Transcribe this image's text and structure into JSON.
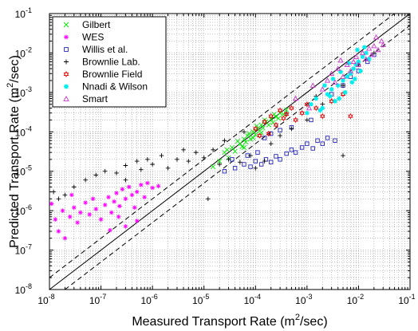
{
  "chart_data": {
    "type": "scatter",
    "xscale": "log",
    "yscale": "log",
    "xlim": [
      1e-08,
      0.1
    ],
    "ylim": [
      1e-08,
      0.1
    ],
    "grid": true,
    "legend_position": "top-left",
    "xlabel": {
      "pre": "Measured Transport Rate (m",
      "sup": "2",
      "post": "/sec)"
    },
    "ylabel": {
      "pre": "Predicted Transport Rate (m",
      "sup": "2",
      "post": "/sec)"
    },
    "x_tick_labels": [
      {
        "v": 1e-08,
        "base": "10",
        "exp": "-8"
      },
      {
        "v": 1e-07,
        "base": "10",
        "exp": "-7"
      },
      {
        "v": 1e-06,
        "base": "10",
        "exp": "-6"
      },
      {
        "v": 1e-05,
        "base": "10",
        "exp": "-5"
      },
      {
        "v": 0.0001,
        "base": "10",
        "exp": "-4"
      },
      {
        "v": 0.001,
        "base": "10",
        "exp": "-3"
      },
      {
        "v": 0.01,
        "base": "10",
        "exp": "-2"
      },
      {
        "v": 0.1,
        "base": "10",
        "exp": "-1"
      }
    ],
    "y_tick_labels": [
      {
        "v": 1e-08,
        "base": "10",
        "exp": "-8"
      },
      {
        "v": 1e-07,
        "base": "10",
        "exp": "-7"
      },
      {
        "v": 1e-06,
        "base": "10",
        "exp": "-6"
      },
      {
        "v": 1e-05,
        "base": "10",
        "exp": "-5"
      },
      {
        "v": 0.0001,
        "base": "10",
        "exp": "-4"
      },
      {
        "v": 0.001,
        "base": "10",
        "exp": "-3"
      },
      {
        "v": 0.01,
        "base": "10",
        "exp": "-2"
      },
      {
        "v": 0.1,
        "base": "10",
        "exp": "-1"
      }
    ],
    "reference_lines": [
      {
        "kind": "equality",
        "factor": 1,
        "style": "solid",
        "color": "#000000"
      },
      {
        "kind": "factor",
        "factor": 2,
        "style": "dashed",
        "color": "#000000"
      },
      {
        "kind": "factor",
        "factor": 0.5,
        "style": "dashed",
        "color": "#000000"
      }
    ],
    "series": [
      {
        "name": "Gilbert",
        "marker": "x",
        "color": "#00ee00",
        "points": [
          [
            2e-05,
            1.8e-05
          ],
          [
            2.5e-05,
            3e-05
          ],
          [
            3e-05,
            2.2e-05
          ],
          [
            3.5e-05,
            4e-05
          ],
          [
            4e-05,
            3.2e-05
          ],
          [
            5e-05,
            5e-05
          ],
          [
            5.5e-05,
            4.2e-05
          ],
          [
            6e-05,
            6.5e-05
          ],
          [
            6.5e-05,
            5.5e-05
          ],
          [
            7e-05,
            8e-05
          ],
          [
            8e-05,
            6.5e-05
          ],
          [
            9e-05,
            0.0001
          ],
          [
            0.0001,
            8.5e-05
          ],
          [
            0.00011,
            0.00012
          ],
          [
            0.00012,
            0.000105
          ],
          [
            0.00013,
            0.00015
          ],
          [
            0.00014,
            0.000125
          ],
          [
            0.00016,
            0.00018
          ],
          [
            0.00018,
            0.00015
          ],
          [
            0.0002,
            0.00021
          ],
          [
            0.00022,
            0.00017
          ],
          [
            0.00025,
            0.00024
          ],
          [
            0.00028,
            0.00022
          ],
          [
            0.0003,
            0.0003
          ],
          [
            0.00035,
            0.00028
          ],
          [
            0.0004,
            0.00036
          ],
          [
            1.5e-05,
            1.3e-05
          ],
          [
            2.8e-05,
            3.5e-05
          ],
          [
            4.5e-05,
            5.8e-05
          ],
          [
            7.5e-05,
            9e-05
          ],
          [
            0.000105,
            0.00014
          ],
          [
            0.00015,
            0.0002
          ],
          [
            0.00023,
            0.00028
          ],
          [
            6e-05,
            4e-05
          ],
          [
            9e-05,
            7e-05
          ],
          [
            0.00013,
            9.5e-05
          ]
        ]
      },
      {
        "name": "WES",
        "marker": "star",
        "color": "#ff00ff",
        "points": [
          [
            1.1e-08,
            1.5e-06
          ],
          [
            1.3e-08,
            6e-07
          ],
          [
            1.5e-08,
            3e-07
          ],
          [
            1.8e-08,
            1e-06
          ],
          [
            2e-08,
            2e-07
          ],
          [
            2.5e-08,
            7e-07
          ],
          [
            3e-08,
            1.2e-06
          ],
          [
            3.5e-08,
            5e-07
          ],
          [
            4e-08,
            9e-07
          ],
          [
            5e-08,
            1.6e-06
          ],
          [
            6e-08,
            8e-07
          ],
          [
            7e-08,
            2e-06
          ],
          [
            8e-08,
            1.1e-06
          ],
          [
            1e-07,
            6e-07
          ],
          [
            1.2e-07,
            1.4e-06
          ],
          [
            1.4e-07,
            2.2e-06
          ],
          [
            1.6e-07,
            9e-07
          ],
          [
            1.8e-07,
            1.7e-06
          ],
          [
            2e-07,
            2.8e-06
          ],
          [
            2.3e-07,
            1.3e-06
          ],
          [
            2.6e-07,
            3.5e-06
          ],
          [
            3e-07,
            2e-06
          ],
          [
            3.5e-07,
            4e-06
          ],
          [
            4e-07,
            2.5e-06
          ],
          [
            4.5e-07,
            1.2e-06
          ],
          [
            5e-07,
            3e-06
          ],
          [
            6e-07,
            4.5e-06
          ],
          [
            7e-07,
            2.2e-06
          ],
          [
            8e-07,
            5e-06
          ],
          [
            5e-07,
            5.5e-07
          ],
          [
            3e-07,
            4e-07
          ],
          [
            1e-06,
            3.8e-06
          ],
          [
            1.3e-06,
            4.2e-06
          ],
          [
            1.5e-07,
            3.2e-07
          ],
          [
            2.2e-07,
            7e-07
          ],
          [
            2.7e-08,
            2.5e-06
          ]
        ]
      },
      {
        "name": "Willis et al.",
        "marker": "square",
        "color": "#2222bb",
        "points": [
          [
            2.5e-05,
            1e-05
          ],
          [
            4e-05,
            1.2e-05
          ],
          [
            6e-05,
            1.5e-05
          ],
          [
            8e-05,
            1.3e-05
          ],
          [
            0.0001,
            1.8e-05
          ],
          [
            0.00013,
            1.5e-05
          ],
          [
            0.00016,
            2e-05
          ],
          [
            0.0002,
            1.7e-05
          ],
          [
            0.00025,
            2.4e-05
          ],
          [
            0.0003,
            2e-05
          ],
          [
            0.0004,
            2.8e-05
          ],
          [
            0.0005,
            3.5e-05
          ],
          [
            0.0006,
            3e-05
          ],
          [
            0.0008,
            4e-05
          ],
          [
            0.001,
            5e-05
          ],
          [
            0.0013,
            3.8e-05
          ],
          [
            0.0016,
            6e-05
          ],
          [
            0.002,
            5e-05
          ],
          [
            0.0025,
            7e-05
          ],
          [
            0.0035,
            6e-05
          ],
          [
            0.00015,
            7e-05
          ],
          [
            0.0002,
            9e-05
          ],
          [
            0.0003,
            0.00011
          ],
          [
            0.0005,
            0.00013
          ],
          [
            0.0012,
            0.0002
          ],
          [
            0.003,
            0.0009
          ],
          [
            0.005,
            0.0015
          ],
          [
            0.007,
            0.0025
          ],
          [
            0.01,
            0.0035
          ],
          [
            0.015,
            0.006
          ],
          [
            0.02,
            0.009
          ],
          [
            3.5e-05,
            2e-05
          ],
          [
            7e-05,
            2.5e-05
          ],
          [
            0.00011,
            3e-05
          ]
        ]
      },
      {
        "name": "Brownlie Lab.",
        "marker": "plus",
        "color": "#000000",
        "points": [
          [
            1.2e-08,
            3e-06
          ],
          [
            1.5e-08,
            2e-06
          ],
          [
            2e-08,
            2.5e-06
          ],
          [
            3e-08,
            4e-06
          ],
          [
            5e-08,
            6e-06
          ],
          [
            8e-08,
            8e-06
          ],
          [
            1.2e-07,
            1e-05
          ],
          [
            2e-07,
            9e-06
          ],
          [
            3e-07,
            1.4e-05
          ],
          [
            5e-07,
            1.8e-05
          ],
          [
            8e-07,
            2e-05
          ],
          [
            1e-06,
            1.5e-05
          ],
          [
            1.5e-06,
            2.5e-05
          ],
          [
            2e-06,
            1.2e-05
          ],
          [
            3e-06,
            2e-05
          ],
          [
            5e-06,
            1.8e-05
          ],
          [
            7e-06,
            3e-05
          ],
          [
            1e-05,
            2.2e-05
          ],
          [
            1.5e-05,
            3.5e-05
          ],
          [
            2e-05,
            1.5e-05
          ],
          [
            3e-05,
            2e-05
          ],
          [
            5e-05,
            1.7e-05
          ],
          [
            8e-05,
            2.5e-05
          ],
          [
            0.0001,
            1.2e-05
          ],
          [
            0.00015,
            1.8e-05
          ],
          [
            0.0002,
            5e-05
          ],
          [
            0.0003,
            8e-05
          ],
          [
            0.0005,
            0.00012
          ],
          [
            0.001,
            0.0002
          ],
          [
            0.002,
            0.0005
          ],
          [
            0.005,
            0.0015
          ],
          [
            0.01,
            0.005
          ],
          [
            0.02,
            0.01
          ],
          [
            0.005,
            2.5e-05
          ],
          [
            3e-07,
            6e-06
          ],
          [
            6e-07,
            1.1e-05
          ],
          [
            4e-06,
            3.5e-05
          ],
          [
            2.5e-05,
            6e-05
          ],
          [
            6e-05,
            0.0001
          ],
          [
            0.0004,
            0.0003
          ],
          [
            0.0015,
            0.0008
          ],
          [
            1.2e-05,
            2e-06
          ]
        ]
      },
      {
        "name": "Brownlie Field",
        "marker": "hexagram",
        "color": "#dd0000",
        "points": [
          [
            0.0001,
            0.00012
          ],
          [
            0.00015,
            0.00018
          ],
          [
            0.0002,
            0.00025
          ],
          [
            0.00025,
            0.00015
          ],
          [
            0.0003,
            0.00035
          ],
          [
            0.0004,
            0.00028
          ],
          [
            0.0005,
            0.0004
          ],
          [
            0.0006,
            0.0002
          ],
          [
            0.0008,
            0.0003
          ],
          [
            0.001,
            0.0005
          ],
          [
            0.0015,
            0.0004
          ],
          [
            0.002,
            0.00025
          ],
          [
            0.003,
            0.0006
          ],
          [
            0.005,
            0.0009
          ],
          [
            0.007,
            0.00025
          ],
          [
            0.00012,
            8e-05
          ],
          [
            0.00018,
            9e-05
          ],
          [
            0.00035,
            0.00022
          ]
        ]
      },
      {
        "name": "Nnadi & Wilson",
        "marker": "asterisk",
        "color": "#00eeee",
        "points": [
          [
            0.001,
            0.0003
          ],
          [
            0.0012,
            0.0005
          ],
          [
            0.0015,
            0.0007
          ],
          [
            0.002,
            0.0004
          ],
          [
            0.0025,
            0.0009
          ],
          [
            0.003,
            0.0012
          ],
          [
            0.0035,
            0.0006
          ],
          [
            0.004,
            0.0015
          ],
          [
            0.005,
            0.002
          ],
          [
            0.0055,
            0.001
          ],
          [
            0.006,
            0.0025
          ],
          [
            0.007,
            0.003
          ],
          [
            0.0075,
            0.0018
          ],
          [
            0.008,
            0.004
          ],
          [
            0.009,
            0.005
          ],
          [
            0.01,
            0.006
          ],
          [
            0.011,
            0.0035
          ],
          [
            0.012,
            0.008
          ],
          [
            0.014,
            0.01
          ],
          [
            0.016,
            0.007
          ],
          [
            0.0018,
            0.00035
          ],
          [
            0.0022,
            0.0015
          ],
          [
            0.0032,
            0.0022
          ],
          [
            0.0045,
            0.0033
          ],
          [
            0.0065,
            0.0055
          ],
          [
            0.0085,
            0.0022
          ],
          [
            0.013,
            0.014
          ],
          [
            0.0095,
            0.012
          ],
          [
            0.0028,
            0.0008
          ],
          [
            0.0042,
            0.0007
          ]
        ]
      },
      {
        "name": "Smart",
        "marker": "triangle",
        "color": "#cc33cc",
        "points": [
          [
            0.002,
            0.0012
          ],
          [
            0.0025,
            0.002
          ],
          [
            0.003,
            0.003
          ],
          [
            0.0035,
            0.0018
          ],
          [
            0.004,
            0.004
          ],
          [
            0.005,
            0.0025
          ],
          [
            0.006,
            0.005
          ],
          [
            0.007,
            0.0035
          ],
          [
            0.008,
            0.006
          ],
          [
            0.009,
            0.008
          ],
          [
            0.01,
            0.005
          ],
          [
            0.012,
            0.01
          ],
          [
            0.014,
            0.007
          ],
          [
            0.016,
            0.013
          ],
          [
            0.018,
            0.009
          ],
          [
            0.02,
            0.015
          ],
          [
            0.024,
            0.012
          ],
          [
            0.028,
            0.02
          ],
          [
            0.03,
            0.016
          ],
          [
            0.0011,
            0.0004
          ],
          [
            0.0006,
            0.0007
          ],
          [
            0.0013,
            0.0015
          ],
          [
            0.0045,
            0.0065
          ],
          [
            0.022,
            0.025
          ]
        ]
      }
    ]
  }
}
